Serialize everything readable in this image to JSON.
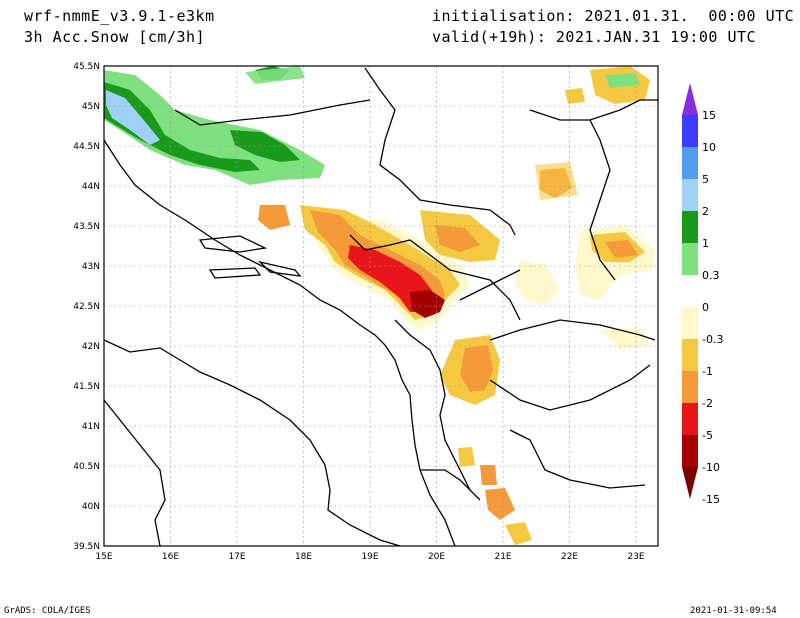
{
  "header": {
    "model": "wrf-nmmE_v3.9.1-e3km",
    "field": "3h Acc.Snow [cm/3h]",
    "init": "initialisation: 2021.01.31.  00:00 UTC",
    "valid": "valid(+19h): 2021.JAN.31 19:00 UTC"
  },
  "footer": {
    "left": "GrADS: COLA/IGES",
    "right": "2021-01-31-09:54"
  },
  "map": {
    "lon_labels": [
      "15E",
      "16E",
      "17E",
      "18E",
      "19E",
      "20E",
      "21E",
      "22E",
      "23E"
    ],
    "lat_labels": [
      "45.5N",
      "45N",
      "44.5N",
      "44N",
      "43.5N",
      "43N",
      "42.5N",
      "42N",
      "41.5N",
      "41N",
      "40.5N",
      "40N",
      "39.5N"
    ],
    "lon_range": [
      15,
      23.33
    ],
    "lat_range": [
      39.5,
      45.5
    ],
    "grid": true
  },
  "colorbar": {
    "labels": [
      "15",
      "10",
      "5",
      "2",
      "1",
      "0.3",
      "0",
      "-0.3",
      "-1",
      "-2",
      "-5",
      "-10",
      "-15"
    ],
    "colors": [
      "#8a2be2",
      "#3b3bff",
      "#4f9cf0",
      "#9fd0f5",
      "#1a9a1a",
      "#7ee07e",
      "#ffffff",
      "#fff8cc",
      "#f5c842",
      "#f59a3a",
      "#e8151b",
      "#a50000",
      "#7a0000"
    ]
  }
}
